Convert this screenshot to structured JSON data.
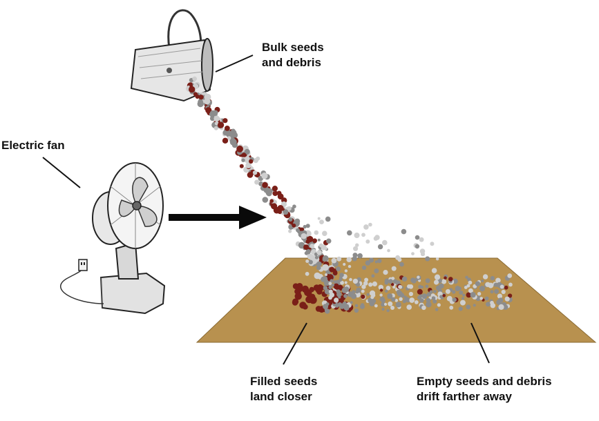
{
  "labels": {
    "bulk_line1": "Bulk seeds",
    "bulk_line2": "and debris",
    "fan": "Electric fan",
    "filled_line1": "Filled seeds",
    "filled_line2": "land closer",
    "empty_line1": "Empty seeds and debris",
    "empty_line2": "drift farther away"
  },
  "colors": {
    "tray": "#b8914f",
    "filled_seed": "#7a1f18",
    "empty_seed": "#8c8c8c",
    "debris": "#cfcfcf",
    "arrow": "#0a0a0a"
  },
  "icons": [
    "bucket-icon",
    "electric-fan-icon",
    "power-outlet-icon"
  ]
}
